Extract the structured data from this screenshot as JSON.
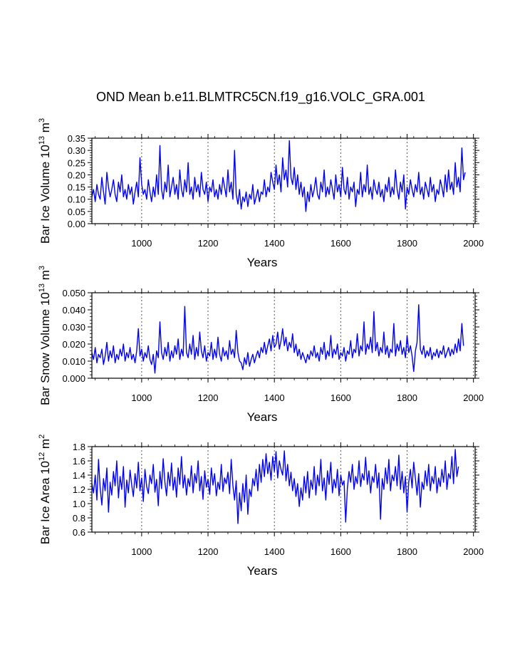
{
  "figure": {
    "title": "OND Mean b.e11.BLMTRC5CN.f19_g16.VOLC_GRA.001",
    "line_color": "#0000ff",
    "grid_color": "#555555"
  },
  "chart_data": [
    {
      "type": "line",
      "title": "OND Mean b.e11.BLMTRC5CN.f19_g16.VOLC_GRA.001",
      "xlabel": "Years",
      "ylabel": "Bar Ice Volume 10^13 m^3",
      "ylabel_main": "Bar Ice Volume 10",
      "ylabel_exp": "13",
      "ylabel_unit": " m",
      "ylabel_unit_exp": "3",
      "xlim": [
        850,
        2005
      ],
      "ylim": [
        0.0,
        0.35
      ],
      "xticks": [
        1000,
        1200,
        1400,
        1600,
        1800,
        2000
      ],
      "xtick_labels": [
        "1000",
        "1200",
        "1400",
        "1600",
        "1800",
        "2000"
      ],
      "yticks": [
        0.0,
        0.05,
        0.1,
        0.15,
        0.2,
        0.25,
        0.3,
        0.35
      ],
      "ytick_labels": [
        "0.00",
        "0.05",
        "0.10",
        "0.15",
        "0.20",
        "0.25",
        "0.30",
        "0.35"
      ],
      "grid": "vertical dashed at x ticks",
      "series": [
        {
          "name": "Bar Ice Volume",
          "x_start": 850,
          "x_step": 5,
          "values": [
            0.11,
            0.14,
            0.09,
            0.16,
            0.12,
            0.1,
            0.19,
            0.13,
            0.08,
            0.21,
            0.15,
            0.11,
            0.14,
            0.18,
            0.12,
            0.09,
            0.17,
            0.13,
            0.2,
            0.11,
            0.14,
            0.1,
            0.16,
            0.12,
            0.15,
            0.08,
            0.13,
            0.17,
            0.11,
            0.27,
            0.16,
            0.12,
            0.14,
            0.1,
            0.18,
            0.13,
            0.09,
            0.15,
            0.11,
            0.2,
            0.12,
            0.32,
            0.14,
            0.1,
            0.17,
            0.13,
            0.24,
            0.11,
            0.15,
            0.19,
            0.12,
            0.16,
            0.1,
            0.22,
            0.14,
            0.11,
            0.18,
            0.13,
            0.25,
            0.12,
            0.15,
            0.1,
            0.19,
            0.13,
            0.16,
            0.11,
            0.21,
            0.14,
            0.12,
            0.17,
            0.09,
            0.15,
            0.13,
            0.18,
            0.11,
            0.14,
            0.1,
            0.16,
            0.12,
            0.19,
            0.15,
            0.11,
            0.22,
            0.13,
            0.17,
            0.1,
            0.3,
            0.12,
            0.08,
            0.14,
            0.06,
            0.11,
            0.09,
            0.13,
            0.07,
            0.12,
            0.1,
            0.16,
            0.08,
            0.11,
            0.14,
            0.09,
            0.13,
            0.12,
            0.18,
            0.11,
            0.15,
            0.13,
            0.21,
            0.17,
            0.14,
            0.24,
            0.16,
            0.2,
            0.13,
            0.27,
            0.18,
            0.22,
            0.15,
            0.34,
            0.19,
            0.16,
            0.23,
            0.14,
            0.2,
            0.12,
            0.17,
            0.11,
            0.15,
            0.05,
            0.13,
            0.09,
            0.16,
            0.11,
            0.14,
            0.19,
            0.12,
            0.1,
            0.17,
            0.13,
            0.22,
            0.11,
            0.15,
            0.12,
            0.18,
            0.14,
            0.1,
            0.2,
            0.13,
            0.16,
            0.11,
            0.23,
            0.14,
            0.12,
            0.19,
            0.1,
            0.15,
            0.13,
            0.17,
            0.07,
            0.14,
            0.12,
            0.21,
            0.11,
            0.16,
            0.13,
            0.24,
            0.12,
            0.15,
            0.1,
            0.18,
            0.14,
            0.12,
            0.17,
            0.11,
            0.14,
            0.09,
            0.16,
            0.13,
            0.19,
            0.11,
            0.15,
            0.12,
            0.22,
            0.14,
            0.1,
            0.17,
            0.13,
            0.2,
            0.06,
            0.15,
            0.12,
            0.18,
            0.14,
            0.11,
            0.16,
            0.13,
            0.21,
            0.12,
            0.15,
            0.1,
            0.17,
            0.14,
            0.11,
            0.19,
            0.13,
            0.16,
            0.09,
            0.14,
            0.12,
            0.18,
            0.15,
            0.11,
            0.2,
            0.13,
            0.22,
            0.14,
            0.17,
            0.12,
            0.25,
            0.15,
            0.19,
            0.13,
            0.31,
            0.18,
            0.21
          ]
        }
      ]
    },
    {
      "type": "line",
      "xlabel": "Years",
      "ylabel": "Bar Snow Volume 10^13 m^3",
      "ylabel_main": "Bar Snow Volume 10",
      "ylabel_exp": "13",
      "ylabel_unit": " m",
      "ylabel_unit_exp": "3",
      "xlim": [
        850,
        2005
      ],
      "ylim": [
        0.0,
        0.05
      ],
      "xticks": [
        1000,
        1200,
        1400,
        1600,
        1800,
        2000
      ],
      "xtick_labels": [
        "1000",
        "1200",
        "1400",
        "1600",
        "1800",
        "2000"
      ],
      "yticks": [
        0.0,
        0.01,
        0.02,
        0.03,
        0.04,
        0.05
      ],
      "ytick_labels": [
        "0.000",
        "0.010",
        "0.020",
        "0.030",
        "0.040",
        "0.050"
      ],
      "grid": "vertical dashed at x ticks",
      "series": [
        {
          "name": "Bar Snow Volume",
          "x_start": 850,
          "x_step": 5,
          "values": [
            0.015,
            0.011,
            0.018,
            0.009,
            0.014,
            0.012,
            0.017,
            0.008,
            0.013,
            0.021,
            0.01,
            0.016,
            0.012,
            0.019,
            0.009,
            0.014,
            0.011,
            0.017,
            0.013,
            0.02,
            0.01,
            0.015,
            0.012,
            0.018,
            0.011,
            0.014,
            0.009,
            0.016,
            0.029,
            0.013,
            0.017,
            0.01,
            0.015,
            0.012,
            0.019,
            0.011,
            0.008,
            0.014,
            0.003,
            0.016,
            0.012,
            0.033,
            0.015,
            0.011,
            0.018,
            0.013,
            0.021,
            0.01,
            0.016,
            0.012,
            0.019,
            0.014,
            0.023,
            0.011,
            0.017,
            0.013,
            0.042,
            0.015,
            0.012,
            0.02,
            0.014,
            0.025,
            0.011,
            0.018,
            0.013,
            0.027,
            0.016,
            0.012,
            0.019,
            0.01,
            0.015,
            0.013,
            0.021,
            0.011,
            0.017,
            0.012,
            0.024,
            0.014,
            0.01,
            0.018,
            0.013,
            0.016,
            0.011,
            0.022,
            0.014,
            0.017,
            0.012,
            0.028,
            0.015,
            0.01,
            0.009,
            0.005,
            0.012,
            0.008,
            0.015,
            0.007,
            0.011,
            0.014,
            0.009,
            0.013,
            0.016,
            0.012,
            0.018,
            0.015,
            0.021,
            0.014,
            0.019,
            0.023,
            0.016,
            0.025,
            0.018,
            0.02,
            0.027,
            0.017,
            0.022,
            0.029,
            0.019,
            0.024,
            0.016,
            0.021,
            0.018,
            0.026,
            0.015,
            0.02,
            0.013,
            0.017,
            0.011,
            0.015,
            0.012,
            0.009,
            0.014,
            0.011,
            0.016,
            0.013,
            0.019,
            0.012,
            0.015,
            0.01,
            0.018,
            0.014,
            0.021,
            0.011,
            0.016,
            0.013,
            0.025,
            0.012,
            0.017,
            0.014,
            0.02,
            0.011,
            0.015,
            0.013,
            0.018,
            0.01,
            0.016,
            0.014,
            0.022,
            0.012,
            0.017,
            0.015,
            0.026,
            0.013,
            0.019,
            0.016,
            0.033,
            0.014,
            0.02,
            0.017,
            0.024,
            0.015,
            0.039,
            0.016,
            0.021,
            0.013,
            0.018,
            0.015,
            0.027,
            0.014,
            0.019,
            0.012,
            0.017,
            0.015,
            0.032,
            0.013,
            0.02,
            0.016,
            0.022,
            0.014,
            0.018,
            0.012,
            0.025,
            0.015,
            0.019,
            0.013,
            0.004,
            0.016,
            0.021,
            0.043,
            0.017,
            0.014,
            0.019,
            0.012,
            0.016,
            0.013,
            0.018,
            0.011,
            0.015,
            0.013,
            0.017,
            0.012,
            0.016,
            0.014,
            0.019,
            0.012,
            0.015,
            0.018,
            0.013,
            0.017,
            0.014,
            0.02,
            0.015,
            0.023,
            0.016,
            0.032,
            0.019
          ]
        }
      ]
    },
    {
      "type": "line",
      "xlabel": "Years",
      "ylabel": "Bar Ice Area 10^12 m^2",
      "ylabel_main": "Bar Ice Area 10",
      "ylabel_exp": "12",
      "ylabel_unit": " m",
      "ylabel_unit_exp": "2",
      "xlim": [
        850,
        2005
      ],
      "ylim": [
        0.6,
        1.8
      ],
      "xticks": [
        1000,
        1200,
        1400,
        1600,
        1800,
        2000
      ],
      "xtick_labels": [
        "1000",
        "1200",
        "1400",
        "1600",
        "1800",
        "2000"
      ],
      "yticks": [
        0.6,
        0.8,
        1.0,
        1.2,
        1.4,
        1.6,
        1.8
      ],
      "ytick_labels": [
        "0.6",
        "0.8",
        "1.0",
        "1.2",
        "1.4",
        "1.6",
        "1.8"
      ],
      "grid": "vertical dashed at x ticks",
      "series": [
        {
          "name": "Bar Ice Area",
          "x_start": 850,
          "x_step": 5,
          "values": [
            1.28,
            1.15,
            1.4,
            1.05,
            1.62,
            1.22,
            0.98,
            1.35,
            1.18,
            1.5,
            0.88,
            1.3,
            1.12,
            1.45,
            1.25,
            1.6,
            1.08,
            1.38,
            1.2,
            1.52,
            0.95,
            1.33,
            1.15,
            1.47,
            1.26,
            1.1,
            1.42,
            1.22,
            1.58,
            1.18,
            1.36,
            1.03,
            1.48,
            1.24,
            1.14,
            1.4,
            1.28,
            1.55,
            1.16,
            1.34,
            0.97,
            1.45,
            1.21,
            1.63,
            1.3,
            1.11,
            1.44,
            1.25,
            1.57,
            1.19,
            1.37,
            1.09,
            1.5,
            1.27,
            1.66,
            1.22,
            1.4,
            1.12,
            1.35,
            1.24,
            1.53,
            1.15,
            1.42,
            1.29,
            1.6,
            1.18,
            1.38,
            1.06,
            1.46,
            1.23,
            1.34,
            1.13,
            1.5,
            1.26,
            1.42,
            1.11,
            1.3,
            1.2,
            1.55,
            1.17,
            1.36,
            1.28,
            1.44,
            1.14,
            1.62,
            1.25,
            1.05,
            1.32,
            0.72,
            1.15,
            0.9,
            1.28,
            1.02,
            1.4,
            0.85,
            1.2,
            1.1,
            1.35,
            1.25,
            1.48,
            1.18,
            1.55,
            1.3,
            1.62,
            1.38,
            1.7,
            1.42,
            1.58,
            1.33,
            1.66,
            1.45,
            1.73,
            1.36,
            1.6,
            1.48,
            1.4,
            1.74,
            1.32,
            1.55,
            1.25,
            1.44,
            1.18,
            1.35,
            1.1,
            1.28,
            0.96,
            1.22,
            1.05,
            1.38,
            1.15,
            1.45,
            1.08,
            1.33,
            1.2,
            1.52,
            1.12,
            1.4,
            1.25,
            1.62,
            1.18,
            1.36,
            1.05,
            1.46,
            1.27,
            1.58,
            1.15,
            1.34,
            1.22,
            1.48,
            1.11,
            1.4,
            1.26,
            1.32,
            0.74,
            1.22,
            1.45,
            1.3,
            1.55,
            1.2,
            1.38,
            1.28,
            1.6,
            1.24,
            1.42,
            1.33,
            1.65,
            1.27,
            1.46,
            1.15,
            1.38,
            1.3,
            1.55,
            1.22,
            1.43,
            0.78,
            1.35,
            1.2,
            1.5,
            1.28,
            1.62,
            1.18,
            1.4,
            1.32,
            1.52,
            1.25,
            1.68,
            1.2,
            1.45,
            1.15,
            1.38,
            0.88,
            1.3,
            1.48,
            1.22,
            1.58,
            1.35,
            1.12,
            1.42,
            0.95,
            1.3,
            1.2,
            1.46,
            1.25,
            1.55,
            1.18,
            1.38,
            1.28,
            1.52,
            1.15,
            1.36,
            1.24,
            1.48,
            1.3,
            1.6,
            1.2,
            1.42,
            1.35,
            1.66,
            1.28,
            1.76,
            1.38,
            1.52
          ]
        }
      ]
    }
  ]
}
